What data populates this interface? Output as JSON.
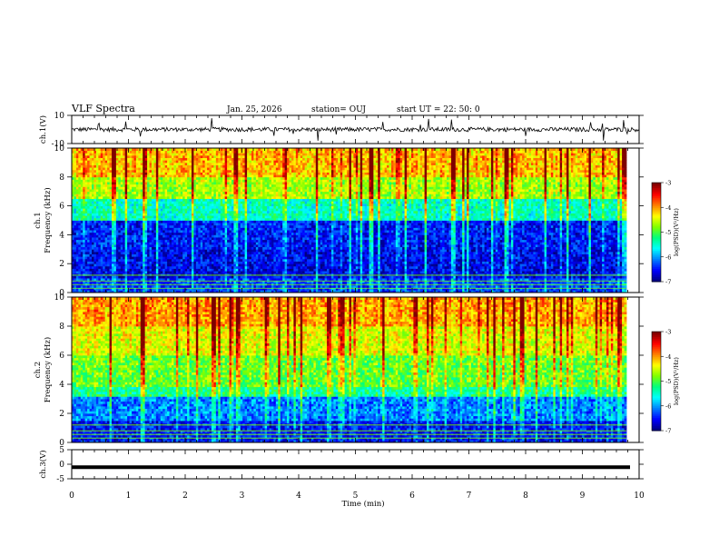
{
  "header": {
    "title": "VLF Spectra",
    "date": "Jan. 25, 2026",
    "station": "station= OUJ",
    "start": "start  UT =   22: 50: 0"
  },
  "colors": {
    "colormap": [
      "#00007f",
      "#0000ff",
      "#007fff",
      "#00ffff",
      "#00ff7f",
      "#7fff00",
      "#ffff00",
      "#ff7f00",
      "#ff0000",
      "#7f0000"
    ],
    "trace": "#000000"
  },
  "chart_data": [
    {
      "type": "line",
      "panel": "ch1-waveform",
      "ylabel": "ch.1(V)",
      "ylim": [
        -10,
        10
      ],
      "yticks": [
        "10",
        "-10"
      ],
      "x": [
        0,
        10
      ],
      "baseline": 0,
      "description_values": {
        "typical_amplitude": 1.5,
        "spike_max": 9,
        "spike_min": -8
      }
    },
    {
      "type": "heatmap",
      "panel": "ch1-spectrogram",
      "ylabel": [
        "ch.1",
        "Frequency  (kHz)"
      ],
      "ylim": [
        0,
        10
      ],
      "yticks": [
        "0",
        "2",
        "4",
        "6",
        "8",
        "10"
      ],
      "xlim": [
        0,
        10
      ],
      "colorbar": {
        "label": "log(PSD)(V²/Hz)",
        "range": [
          -7,
          -3
        ],
        "ticks": [
          "-3",
          "-4",
          "-5",
          "-6",
          "-7"
        ]
      },
      "bands": [
        {
          "from": 0,
          "to": 1,
          "level": -6.4
        },
        {
          "from": 1,
          "to": 3,
          "level": -6.7
        },
        {
          "from": 3,
          "to": 5,
          "level": -6.6
        },
        {
          "from": 5,
          "to": 6.5,
          "level": -5.6
        },
        {
          "from": 6.5,
          "to": 8,
          "level": -4.8
        },
        {
          "from": 8,
          "to": 10,
          "level": -4.3
        }
      ]
    },
    {
      "type": "heatmap",
      "panel": "ch2-spectrogram",
      "ylabel": [
        "ch.2",
        "Frequency  (kHz)"
      ],
      "ylim": [
        0,
        10
      ],
      "yticks": [
        "0",
        "2",
        "4",
        "6",
        "8",
        "10"
      ],
      "xlim": [
        0,
        10
      ],
      "colorbar": {
        "label": "log(PSD)(V²/Hz)",
        "range": [
          -7,
          -3
        ],
        "ticks": [
          "-3",
          "-4",
          "-5",
          "-6",
          "-7"
        ]
      },
      "bands": [
        {
          "from": 0,
          "to": 1.5,
          "level": -6.6
        },
        {
          "from": 1.5,
          "to": 3.2,
          "level": -6.2
        },
        {
          "from": 3.2,
          "to": 3.9,
          "level": -5.4
        },
        {
          "from": 3.9,
          "to": 6,
          "level": -5.0
        },
        {
          "from": 6,
          "to": 8,
          "level": -4.6
        },
        {
          "from": 8,
          "to": 10,
          "level": -4.2
        }
      ]
    },
    {
      "type": "line",
      "panel": "ch3-waveform",
      "ylabel": "ch.3(V)",
      "ylim": [
        -5,
        5
      ],
      "yticks": [
        "5",
        "0",
        "-5"
      ],
      "x": [
        0,
        10
      ],
      "y": [
        -1,
        -1
      ]
    }
  ],
  "xaxis": {
    "label": "Time  (min)",
    "xlim": [
      0,
      10
    ],
    "ticks": [
      "0",
      "1",
      "2",
      "3",
      "4",
      "5",
      "6",
      "7",
      "8",
      "9",
      "10"
    ]
  }
}
